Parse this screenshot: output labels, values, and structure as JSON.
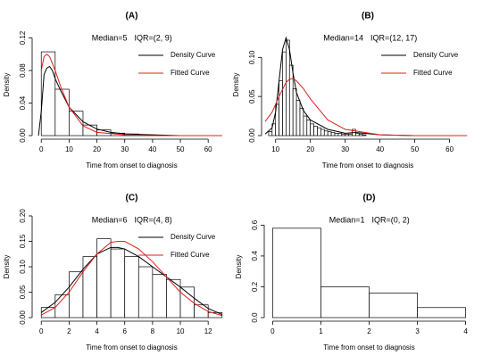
{
  "chart_data": [
    {
      "type": "histogram",
      "title": "(A)",
      "median_label": "Median=5",
      "iqr_label": "IQR=(2, 9)",
      "x_label": "Time from onset to diagnosis",
      "y_label": "Density",
      "bins": [
        0,
        5,
        10,
        15,
        20,
        25,
        30,
        35,
        40,
        45,
        50,
        55,
        60,
        65
      ],
      "values": [
        0.103,
        0.057,
        0.03,
        0.013,
        0.007,
        0.003,
        0.002,
        0.001,
        0.0005,
        0,
        0,
        0,
        0
      ],
      "bar_color": "#ffffff",
      "xlim": [
        -2,
        67
      ],
      "xticks": [
        0,
        10,
        20,
        30,
        40,
        50,
        60
      ],
      "ylim": [
        0,
        0.125
      ],
      "yticks": [
        {
          "value": 0,
          "label": "0.00"
        },
        0.04,
        0.08,
        0.12
      ],
      "legend": "top-right",
      "curves": [
        {
          "name": "Density Curve",
          "color": "#000000",
          "x": [
            -1,
            0,
            1,
            2,
            3,
            4,
            5,
            7,
            10,
            15,
            20,
            25,
            30,
            40,
            50,
            65
          ],
          "values": [
            0,
            0.03,
            0.075,
            0.083,
            0.085,
            0.08,
            0.07,
            0.055,
            0.035,
            0.017,
            0.008,
            0.004,
            0.002,
            0.001,
            0,
            0
          ]
        },
        {
          "name": "Fitted Curve",
          "color": "#e0201b",
          "x": [
            0,
            1,
            2,
            3,
            5,
            7,
            10,
            15,
            20,
            30,
            40,
            65
          ],
          "values": [
            0.08,
            0.097,
            0.1,
            0.097,
            0.08,
            0.06,
            0.035,
            0.012,
            0.004,
            0.001,
            0,
            0
          ]
        }
      ]
    },
    {
      "type": "histogram",
      "title": "(B)",
      "median_label": "Median=14",
      "iqr_label": "IQR=(12, 17)",
      "x_label": "Time from onset to diagnosis",
      "y_label": "Density",
      "bins": [
        8,
        9,
        10,
        11,
        12,
        13,
        14,
        15,
        16,
        17,
        18,
        19,
        20,
        21,
        22,
        23,
        24,
        25,
        26,
        27,
        28,
        29,
        30,
        31,
        32,
        33,
        34,
        35,
        36
      ],
      "values": [
        0.005,
        0.015,
        0.04,
        0.07,
        0.107,
        0.122,
        0.09,
        0.06,
        0.045,
        0.035,
        0.025,
        0.02,
        0.015,
        0.012,
        0.01,
        0.008,
        0.006,
        0.005,
        0.004,
        0.003,
        0.003,
        0.002,
        0.002,
        0.002,
        0.008,
        0.003,
        0.002,
        0.001
      ],
      "bar_color": "#ffffff",
      "xlim": [
        7,
        66
      ],
      "xticks": [
        10,
        20,
        30,
        40,
        50,
        60
      ],
      "ylim": [
        0,
        0.13
      ],
      "yticks": [
        {
          "value": 0,
          "label": "0.00"
        },
        0.05,
        {
          "value": 0.1,
          "label": "0.10"
        }
      ],
      "legend": "top-right",
      "curves": [
        {
          "name": "Density Curve",
          "color": "#000000",
          "x": [
            7,
            9,
            10,
            11,
            12,
            13,
            14,
            15,
            16,
            18,
            20,
            25,
            30,
            33,
            40,
            50,
            65
          ],
          "values": [
            0.002,
            0.01,
            0.03,
            0.07,
            0.11,
            0.125,
            0.11,
            0.08,
            0.055,
            0.032,
            0.02,
            0.008,
            0.003,
            0.004,
            0.001,
            0,
            0
          ]
        },
        {
          "name": "Fitted Curve",
          "color": "#e0201b",
          "x": [
            7,
            9,
            11,
            13,
            14,
            15,
            16,
            18,
            20,
            25,
            30,
            40,
            50,
            65
          ],
          "values": [
            0.018,
            0.03,
            0.05,
            0.068,
            0.072,
            0.073,
            0.07,
            0.06,
            0.047,
            0.02,
            0.008,
            0.001,
            0,
            0
          ]
        }
      ]
    },
    {
      "type": "histogram",
      "title": "(C)",
      "median_label": "Median=6",
      "iqr_label": "IQR=(4, 8)",
      "x_label": "Time from onset to diagnosis",
      "y_label": "Density",
      "bins": [
        0,
        1,
        2,
        3,
        4,
        5,
        6,
        7,
        8,
        9,
        10,
        11,
        12,
        13
      ],
      "values": [
        0.02,
        0.045,
        0.09,
        0.12,
        0.155,
        0.135,
        0.12,
        0.1,
        0.085,
        0.075,
        0.06,
        0.025,
        0.01
      ],
      "bar_color": "#ffffff",
      "xlim": [
        -0.4,
        13.4
      ],
      "xticks": [
        0,
        2,
        4,
        6,
        8,
        10,
        12
      ],
      "ylim": [
        0,
        0.2
      ],
      "yticks": [
        {
          "value": 0,
          "label": "0.00"
        },
        0.05,
        {
          "value": 0.1,
          "label": "0.10"
        },
        0.15,
        {
          "value": 0.2,
          "label": "0.20"
        }
      ],
      "legend": "top-right",
      "curves": [
        {
          "name": "Density Curve",
          "color": "#000000",
          "x": [
            0,
            1,
            2,
            3,
            4,
            5,
            5.5,
            6,
            7,
            8,
            9,
            10,
            11,
            12,
            13
          ],
          "values": [
            0.01,
            0.03,
            0.06,
            0.095,
            0.125,
            0.138,
            0.138,
            0.135,
            0.12,
            0.1,
            0.08,
            0.06,
            0.038,
            0.018,
            0.006
          ]
        },
        {
          "name": "Fitted Curve",
          "color": "#e0201b",
          "x": [
            0,
            1,
            2,
            3,
            4,
            5,
            5.5,
            6,
            7,
            8,
            9,
            10,
            11,
            12,
            13
          ],
          "values": [
            0.005,
            0.02,
            0.05,
            0.09,
            0.125,
            0.148,
            0.15,
            0.15,
            0.135,
            0.11,
            0.08,
            0.05,
            0.028,
            0.012,
            0.004
          ]
        }
      ]
    },
    {
      "type": "histogram",
      "title": "(D)",
      "median_label": "Median=1",
      "iqr_label": "IQR=(0, 2)",
      "x_label": "Time from onset to diagnosis",
      "y_label": "Density",
      "bins": [
        0,
        1,
        2,
        3,
        4
      ],
      "values": [
        0.58,
        0.2,
        0.16,
        0.065
      ],
      "bar_color": "#ffffff",
      "xlim": [
        -0.1,
        4.1
      ],
      "xticks": [
        0,
        1,
        2,
        3,
        4
      ],
      "ylim": [
        0,
        0.66
      ],
      "yticks": [
        {
          "value": 0,
          "label": "0.0"
        },
        0.2,
        0.4,
        0.6
      ]
    }
  ]
}
